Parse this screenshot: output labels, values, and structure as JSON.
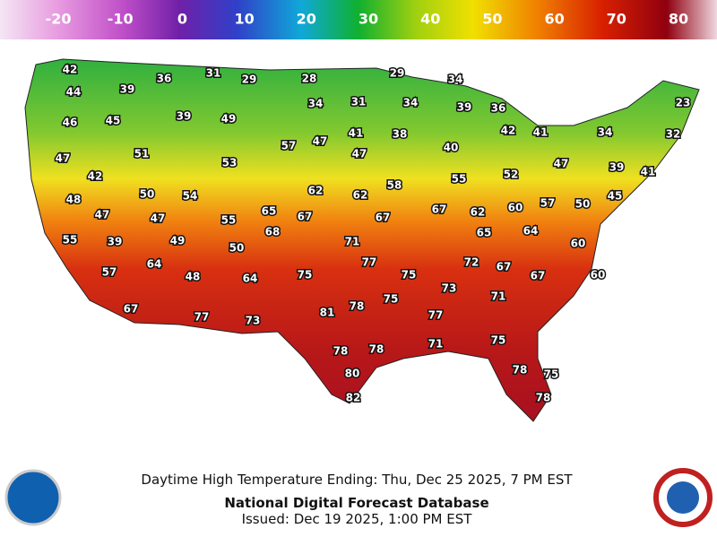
{
  "legend": {
    "ticks": [
      -20,
      -10,
      0,
      10,
      20,
      30,
      40,
      50,
      60,
      70,
      80
    ]
  },
  "map": {
    "temperatures": [
      42,
      44,
      39,
      36,
      31,
      29,
      28,
      29,
      34,
      46,
      45,
      39,
      49,
      34,
      31,
      34,
      39,
      36,
      23,
      47,
      51,
      57,
      47,
      41,
      38,
      40,
      42,
      41,
      34,
      32,
      53,
      47,
      42,
      62,
      62,
      58,
      55,
      52,
      47,
      39,
      41,
      48,
      50,
      54,
      45,
      47,
      47,
      55,
      65,
      67,
      67,
      67,
      62,
      60,
      57,
      50,
      55,
      39,
      49,
      50,
      68,
      71,
      65,
      64,
      60,
      64,
      77,
      72,
      67,
      57,
      48,
      64,
      75,
      75,
      67,
      60,
      73,
      71,
      75,
      67,
      77,
      73,
      81,
      78,
      77,
      71,
      75,
      78,
      78,
      80,
      78,
      75,
      82,
      78
    ]
  },
  "footer": {
    "caption": "Daytime High Temperature Ending: Thu, Dec 25 2025, 7 PM EST",
    "title": "National Digital Forecast Database",
    "issued": "Issued: Dec 19 2025, 1:00 PM EST"
  }
}
